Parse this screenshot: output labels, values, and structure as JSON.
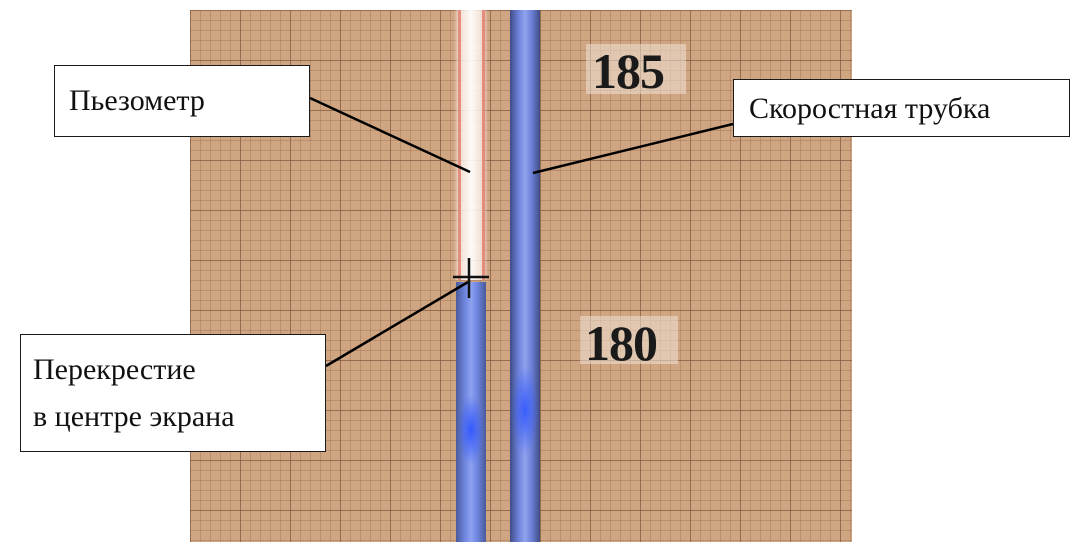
{
  "labels": {
    "piezometer": "Пьезометр",
    "pitot_tube": "Скоростная трубка",
    "crosshair_line1": "Перекрестие",
    "crosshair_line2": "в центре экрана"
  },
  "scale": {
    "upper_mark": "185",
    "lower_mark": "180"
  },
  "colors": {
    "grid_background": "#cfa582",
    "water": "#6f86e0",
    "leader_line": "#000000"
  }
}
